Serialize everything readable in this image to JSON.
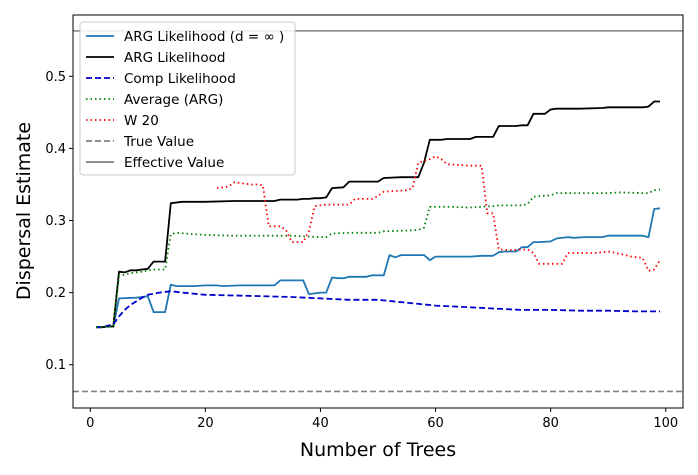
{
  "chart_data": {
    "type": "line",
    "xlabel": "Number of Trees",
    "ylabel": "Dispersal Estimate",
    "xlim": [
      -3,
      103
    ],
    "ylim": [
      0.04,
      0.585
    ],
    "x_ticks": [
      0,
      20,
      40,
      60,
      80,
      100
    ],
    "y_ticks": [
      0.1,
      0.2,
      0.3,
      0.4,
      0.5
    ],
    "x_tick_labels": [
      "0",
      "20",
      "40",
      "60",
      "80",
      "100"
    ],
    "y_tick_labels": [
      "0.1",
      "0.2",
      "0.3",
      "0.4",
      "0.5"
    ],
    "grid": false,
    "legend_position": "top-left",
    "series": [
      {
        "name": "ARG Likelihood (d = ∞ )",
        "color": "#1f77b4",
        "style": "solid",
        "points": [
          [
            1,
            0.152
          ],
          [
            2,
            0.152
          ],
          [
            3,
            0.153
          ],
          [
            4,
            0.153
          ],
          [
            5,
            0.192
          ],
          [
            8,
            0.193
          ],
          [
            9,
            0.194
          ],
          [
            10,
            0.195
          ],
          [
            11,
            0.173
          ],
          [
            12,
            0.173
          ],
          [
            13,
            0.173
          ],
          [
            14,
            0.211
          ],
          [
            15,
            0.209
          ],
          [
            18,
            0.209
          ],
          [
            20,
            0.21
          ],
          [
            22,
            0.21
          ],
          [
            23,
            0.209
          ],
          [
            26,
            0.21
          ],
          [
            28,
            0.21
          ],
          [
            30,
            0.21
          ],
          [
            32,
            0.21
          ],
          [
            33,
            0.217
          ],
          [
            37,
            0.217
          ],
          [
            38,
            0.198
          ],
          [
            40,
            0.2
          ],
          [
            41,
            0.2
          ],
          [
            42,
            0.221
          ],
          [
            43,
            0.22
          ],
          [
            44,
            0.22
          ],
          [
            45,
            0.222
          ],
          [
            48,
            0.222
          ],
          [
            49,
            0.224
          ],
          [
            51,
            0.224
          ],
          [
            52,
            0.252
          ],
          [
            53,
            0.249
          ],
          [
            54,
            0.252
          ],
          [
            56,
            0.252
          ],
          [
            58,
            0.252
          ],
          [
            59,
            0.245
          ],
          [
            60,
            0.25
          ],
          [
            62,
            0.25
          ],
          [
            66,
            0.25
          ],
          [
            68,
            0.251
          ],
          [
            70,
            0.251
          ],
          [
            71,
            0.256
          ],
          [
            72,
            0.257
          ],
          [
            74,
            0.257
          ],
          [
            75,
            0.263
          ],
          [
            76,
            0.263
          ],
          [
            77,
            0.27
          ],
          [
            78,
            0.27
          ],
          [
            80,
            0.271
          ],
          [
            81,
            0.275
          ],
          [
            83,
            0.277
          ],
          [
            84,
            0.276
          ],
          [
            86,
            0.277
          ],
          [
            89,
            0.277
          ],
          [
            90,
            0.279
          ],
          [
            96,
            0.279
          ],
          [
            97,
            0.277
          ],
          [
            98,
            0.316
          ],
          [
            99,
            0.317
          ]
        ]
      },
      {
        "name": "ARG Likelihood",
        "color": "#000000",
        "style": "solid",
        "points": [
          [
            1,
            0.152
          ],
          [
            2,
            0.152
          ],
          [
            3,
            0.153
          ],
          [
            4,
            0.153
          ],
          [
            5,
            0.229
          ],
          [
            6,
            0.228
          ],
          [
            7,
            0.231
          ],
          [
            8,
            0.231
          ],
          [
            9,
            0.232
          ],
          [
            10,
            0.233
          ],
          [
            11,
            0.243
          ],
          [
            13,
            0.243
          ],
          [
            14,
            0.324
          ],
          [
            16,
            0.326
          ],
          [
            20,
            0.326
          ],
          [
            25,
            0.327
          ],
          [
            30,
            0.327
          ],
          [
            31,
            0.327
          ],
          [
            32,
            0.327
          ],
          [
            33,
            0.329
          ],
          [
            34,
            0.329
          ],
          [
            36,
            0.329
          ],
          [
            37,
            0.33
          ],
          [
            38,
            0.33
          ],
          [
            39,
            0.331
          ],
          [
            40,
            0.331
          ],
          [
            41,
            0.332
          ],
          [
            42,
            0.345
          ],
          [
            44,
            0.346
          ],
          [
            45,
            0.354
          ],
          [
            48,
            0.354
          ],
          [
            50,
            0.354
          ],
          [
            51,
            0.359
          ],
          [
            54,
            0.36
          ],
          [
            57,
            0.36
          ],
          [
            58,
            0.38
          ],
          [
            59,
            0.412
          ],
          [
            61,
            0.412
          ],
          [
            62,
            0.413
          ],
          [
            66,
            0.413
          ],
          [
            67,
            0.416
          ],
          [
            70,
            0.416
          ],
          [
            71,
            0.431
          ],
          [
            74,
            0.431
          ],
          [
            75,
            0.432
          ],
          [
            76,
            0.432
          ],
          [
            77,
            0.448
          ],
          [
            79,
            0.448
          ],
          [
            80,
            0.454
          ],
          [
            81,
            0.455
          ],
          [
            85,
            0.455
          ],
          [
            89,
            0.456
          ],
          [
            90,
            0.457
          ],
          [
            96,
            0.457
          ],
          [
            97,
            0.458
          ],
          [
            98,
            0.465
          ],
          [
            99,
            0.465
          ]
        ]
      },
      {
        "name": "Comp Likelihood",
        "color": "#0000cc",
        "style": "dashed",
        "points": [
          [
            1,
            0.152
          ],
          [
            2,
            0.152
          ],
          [
            3,
            0.154
          ],
          [
            4,
            0.156
          ],
          [
            5,
            0.167
          ],
          [
            6,
            0.176
          ],
          [
            7,
            0.183
          ],
          [
            8,
            0.188
          ],
          [
            9,
            0.193
          ],
          [
            10,
            0.197
          ],
          [
            12,
            0.2
          ],
          [
            14,
            0.202
          ],
          [
            16,
            0.2
          ],
          [
            20,
            0.197
          ],
          [
            25,
            0.196
          ],
          [
            30,
            0.195
          ],
          [
            35,
            0.194
          ],
          [
            40,
            0.192
          ],
          [
            45,
            0.19
          ],
          [
            50,
            0.19
          ],
          [
            55,
            0.186
          ],
          [
            60,
            0.182
          ],
          [
            65,
            0.18
          ],
          [
            70,
            0.178
          ],
          [
            75,
            0.176
          ],
          [
            80,
            0.176
          ],
          [
            85,
            0.175
          ],
          [
            90,
            0.175
          ],
          [
            95,
            0.174
          ],
          [
            99,
            0.174
          ]
        ]
      },
      {
        "name": "Average (ARG)",
        "color": "#008000",
        "style": "dotted",
        "points": [
          [
            1,
            0.152
          ],
          [
            2,
            0.152
          ],
          [
            3,
            0.153
          ],
          [
            4,
            0.153
          ],
          [
            5,
            0.223
          ],
          [
            7,
            0.227
          ],
          [
            9,
            0.229
          ],
          [
            11,
            0.232
          ],
          [
            13,
            0.232
          ],
          [
            14,
            0.281
          ],
          [
            15,
            0.283
          ],
          [
            18,
            0.281
          ],
          [
            20,
            0.28
          ],
          [
            25,
            0.279
          ],
          [
            30,
            0.279
          ],
          [
            35,
            0.279
          ],
          [
            37,
            0.278
          ],
          [
            40,
            0.277
          ],
          [
            41,
            0.277
          ],
          [
            42,
            0.282
          ],
          [
            45,
            0.283
          ],
          [
            48,
            0.283
          ],
          [
            50,
            0.283
          ],
          [
            51,
            0.285
          ],
          [
            55,
            0.286
          ],
          [
            57,
            0.287
          ],
          [
            58,
            0.29
          ],
          [
            59,
            0.319
          ],
          [
            62,
            0.319
          ],
          [
            66,
            0.318
          ],
          [
            70,
            0.32
          ],
          [
            71,
            0.321
          ],
          [
            75,
            0.321
          ],
          [
            76,
            0.323
          ],
          [
            77,
            0.333
          ],
          [
            80,
            0.335
          ],
          [
            81,
            0.338
          ],
          [
            85,
            0.338
          ],
          [
            90,
            0.338
          ],
          [
            92,
            0.339
          ],
          [
            96,
            0.338
          ],
          [
            97,
            0.338
          ],
          [
            98,
            0.342
          ],
          [
            99,
            0.343
          ]
        ]
      },
      {
        "name": "W 20",
        "color": "#ff0000",
        "style": "dotted",
        "points": [
          [
            22,
            0.345
          ],
          [
            23,
            0.346
          ],
          [
            24,
            0.347
          ],
          [
            25,
            0.353
          ],
          [
            26,
            0.352
          ],
          [
            27,
            0.351
          ],
          [
            28,
            0.35
          ],
          [
            29,
            0.35
          ],
          [
            30,
            0.349
          ],
          [
            31,
            0.292
          ],
          [
            33,
            0.292
          ],
          [
            34,
            0.287
          ],
          [
            35,
            0.27
          ],
          [
            37,
            0.27
          ],
          [
            38,
            0.285
          ],
          [
            39,
            0.32
          ],
          [
            41,
            0.322
          ],
          [
            45,
            0.322
          ],
          [
            46,
            0.33
          ],
          [
            48,
            0.33
          ],
          [
            49,
            0.33
          ],
          [
            50,
            0.334
          ],
          [
            51,
            0.34
          ],
          [
            55,
            0.342
          ],
          [
            56,
            0.345
          ],
          [
            57,
            0.38
          ],
          [
            59,
            0.385
          ],
          [
            60,
            0.389
          ],
          [
            61,
            0.385
          ],
          [
            62,
            0.378
          ],
          [
            66,
            0.376
          ],
          [
            68,
            0.376
          ],
          [
            69,
            0.31
          ],
          [
            70,
            0.31
          ],
          [
            71,
            0.26
          ],
          [
            73,
            0.259
          ],
          [
            76,
            0.26
          ],
          [
            77,
            0.255
          ],
          [
            78,
            0.24
          ],
          [
            82,
            0.24
          ],
          [
            83,
            0.255
          ],
          [
            88,
            0.255
          ],
          [
            90,
            0.257
          ],
          [
            92,
            0.254
          ],
          [
            94,
            0.25
          ],
          [
            96,
            0.248
          ],
          [
            97,
            0.23
          ],
          [
            98,
            0.232
          ],
          [
            99,
            0.245
          ]
        ]
      }
    ],
    "reference_lines": [
      {
        "name": "True Value",
        "y": 0.063,
        "color": "#808080",
        "style": "dashed"
      },
      {
        "name": "Effective Value",
        "y": 0.563,
        "color": "#808080",
        "style": "solid"
      }
    ]
  }
}
